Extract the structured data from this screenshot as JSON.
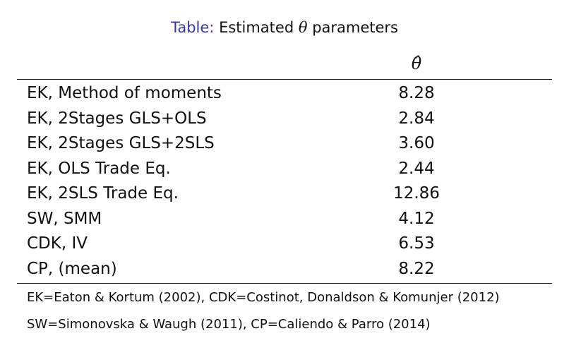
{
  "caption": {
    "label": "Table:",
    "text_before": "Estimated",
    "symbol": "θ",
    "text_after": "parameters"
  },
  "table": {
    "column_header": "θ̂",
    "rows": [
      {
        "name": "EK, Method of moments",
        "value": "8.28"
      },
      {
        "name": "EK, 2Stages GLS+OLS",
        "value": "2.84"
      },
      {
        "name": "EK, 2Stages GLS+2SLS",
        "value": "3.60"
      },
      {
        "name": "EK, OLS Trade Eq.",
        "value": "2.44"
      },
      {
        "name": "EK, 2SLS Trade Eq.",
        "value": "12.86"
      },
      {
        "name": "SW, SMM",
        "value": "4.12"
      },
      {
        "name": "CDK, IV",
        "value": "6.53"
      },
      {
        "name": "CP, (mean)",
        "value": "8.22"
      }
    ]
  },
  "notes": [
    "EK=Eaton & Kortum (2002), CDK=Costinot, Donaldson & Komunjer (2012)",
    "SW=Simonovska & Waugh (2011), CP=Caliendo & Parro (2014)"
  ],
  "colors": {
    "caption_label": "#3535b0",
    "text": "#111111"
  }
}
